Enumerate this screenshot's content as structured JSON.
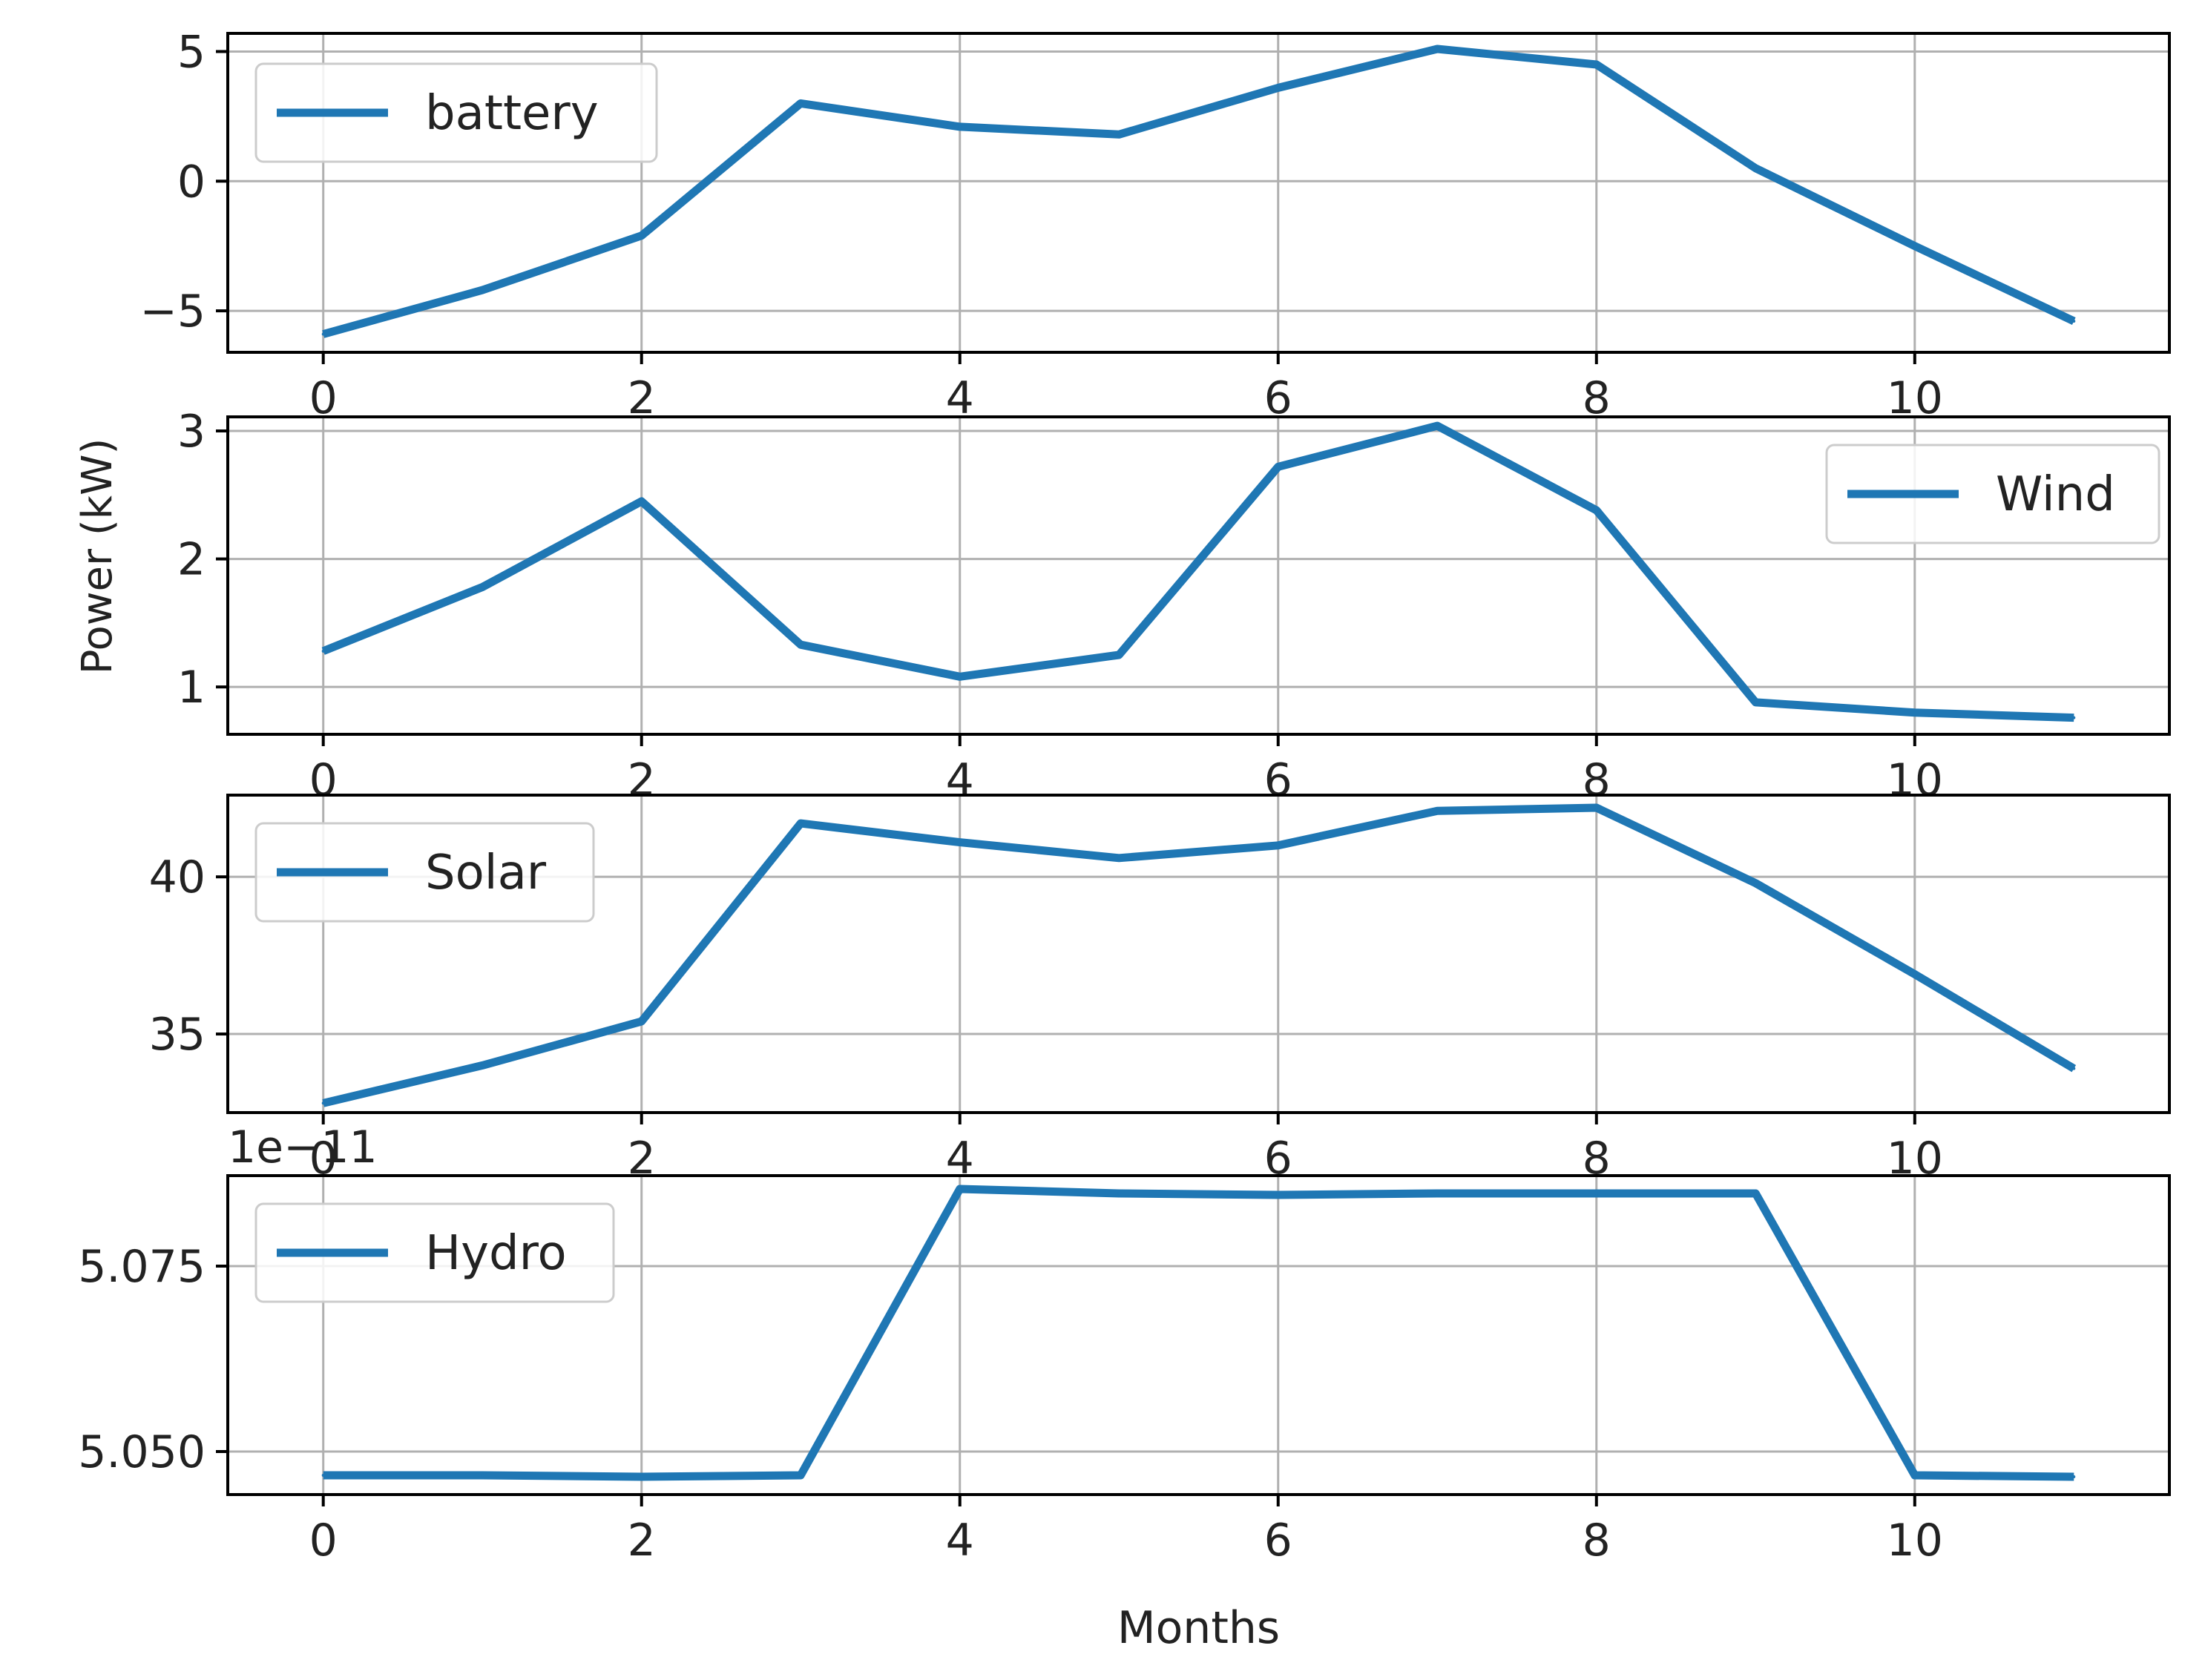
{
  "figure": {
    "ylabel": "Power (kW)",
    "xlabel": "Months",
    "line_color": "#1f77b4",
    "grid_color": "#b0b0b0"
  },
  "chart_data": [
    {
      "type": "line",
      "x": [
        0,
        1,
        2,
        3,
        4,
        5,
        6,
        7,
        8,
        9,
        10,
        11
      ],
      "series": [
        {
          "name": "battery",
          "values": [
            -5.9,
            -4.2,
            -2.1,
            3.0,
            2.1,
            1.8,
            3.6,
            5.1,
            4.5,
            0.5,
            -2.5,
            -5.4
          ]
        }
      ],
      "xlim": [
        -0.6,
        11.6
      ],
      "ylim": [
        -6.6,
        5.7
      ],
      "xticks": [
        0,
        2,
        4,
        6,
        8,
        10
      ],
      "xticklabels": [
        "0",
        "2",
        "4",
        "6",
        "8",
        "10"
      ],
      "yticks": [
        5,
        0,
        -5
      ],
      "yticklabels": [
        "5",
        "0",
        "−5"
      ],
      "grid": true,
      "legend": "upper left"
    },
    {
      "type": "line",
      "x": [
        0,
        1,
        2,
        3,
        4,
        5,
        6,
        7,
        8,
        9,
        10,
        11
      ],
      "series": [
        {
          "name": "Wind",
          "values": [
            1.28,
            1.78,
            2.45,
            1.33,
            1.08,
            1.25,
            2.72,
            3.04,
            2.38,
            0.88,
            0.8,
            0.76
          ]
        }
      ],
      "xlim": [
        -0.6,
        11.6
      ],
      "ylim": [
        0.63,
        3.11
      ],
      "xticks": [
        0,
        2,
        4,
        6,
        8,
        10
      ],
      "xticklabels": [
        "0",
        "2",
        "4",
        "6",
        "8",
        "10"
      ],
      "yticks": [
        3,
        2,
        1
      ],
      "yticklabels": [
        "3",
        "2",
        "1"
      ],
      "grid": true,
      "legend": "upper right"
    },
    {
      "type": "line",
      "x": [
        0,
        1,
        2,
        3,
        4,
        5,
        6,
        7,
        8,
        9,
        10,
        11
      ],
      "series": [
        {
          "name": "Solar",
          "values": [
            32.8,
            34.0,
            35.4,
            41.7,
            41.1,
            40.6,
            41.0,
            42.1,
            42.2,
            39.8,
            36.9,
            33.9
          ]
        }
      ],
      "xlim": [
        -0.6,
        11.6
      ],
      "ylim": [
        32.5,
        42.6
      ],
      "xticks": [
        0,
        2,
        4,
        6,
        8,
        10
      ],
      "xticklabels": [
        "0",
        "2",
        "4",
        "6",
        "8",
        "10"
      ],
      "yticks": [
        40,
        35
      ],
      "yticklabels": [
        "40",
        "35"
      ],
      "grid": true,
      "legend": "upper left"
    },
    {
      "type": "line",
      "x": [
        0,
        1,
        2,
        3,
        4,
        5,
        6,
        7,
        8,
        9,
        10,
        11
      ],
      "series": [
        {
          "name": "Hydro",
          "values": [
            5.0468,
            5.0468,
            5.0466,
            5.0468,
            5.0854,
            5.0848,
            5.0846,
            5.0848,
            5.0848,
            5.0848,
            5.0468,
            5.0466
          ]
        }
      ],
      "xlim": [
        -0.6,
        11.6
      ],
      "ylim": [
        5.0442,
        5.0872
      ],
      "xticks": [
        0,
        2,
        4,
        6,
        8,
        10
      ],
      "xticklabels": [
        "0",
        "2",
        "4",
        "6",
        "8",
        "10"
      ],
      "yticks": [
        5.075,
        5.05
      ],
      "yticklabels": [
        "5.075",
        "5.050"
      ],
      "offset_text": "1e−11",
      "grid": true,
      "legend": "upper left"
    }
  ]
}
